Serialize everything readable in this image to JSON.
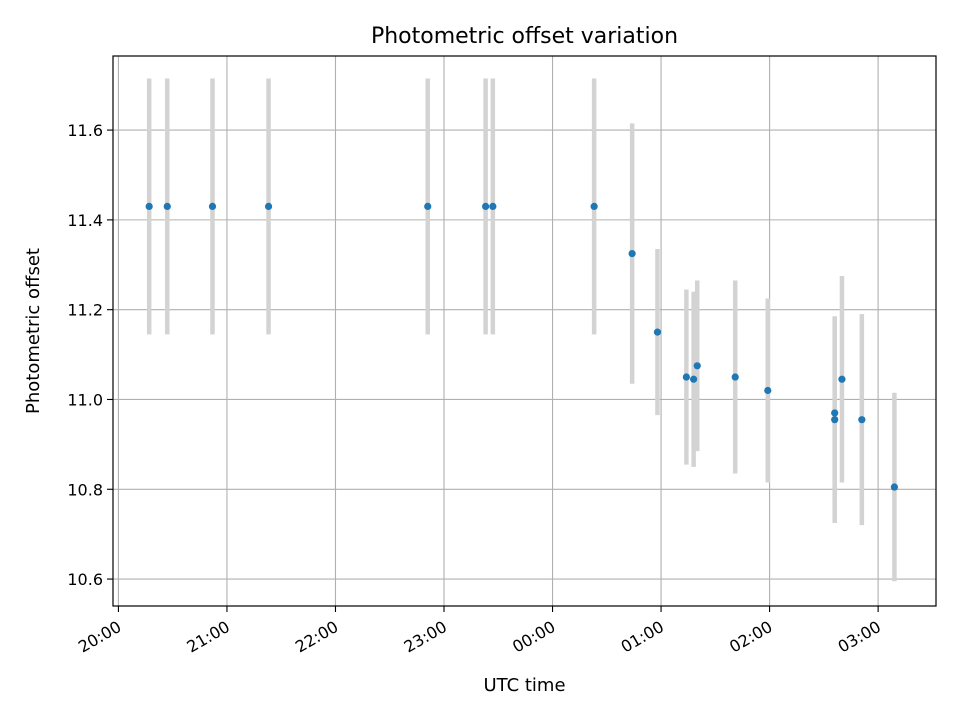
{
  "chart_data": {
    "type": "scatter",
    "title": "Photometric offset variation",
    "xlabel": "UTC time",
    "ylabel": "Photometric offset",
    "xlim_minutes": [
      -3,
      452
    ],
    "ylim": [
      10.54,
      11.765
    ],
    "grid": true,
    "x_tick_labels": [
      "20:00",
      "21:00",
      "22:00",
      "23:00",
      "00:00",
      "01:00",
      "02:00",
      "03:00"
    ],
    "y_ticks": [
      10.6,
      10.8,
      11.0,
      11.2,
      11.4,
      11.6
    ],
    "y_tick_labels": [
      "10.6",
      "10.8",
      "11.0",
      "11.2",
      "11.4",
      "11.6"
    ],
    "colors": {
      "point": "#1f77b4",
      "errorbar": "#d3d3d3",
      "grid": "#b0b0b0"
    },
    "series": [
      {
        "points": [
          {
            "time": "20:17",
            "y": 11.43,
            "err": 0.285
          },
          {
            "time": "20:27",
            "y": 11.43,
            "err": 0.285
          },
          {
            "time": "20:52",
            "y": 11.43,
            "err": 0.285
          },
          {
            "time": "21:23",
            "y": 11.43,
            "err": 0.285
          },
          {
            "time": "22:51",
            "y": 11.43,
            "err": 0.285
          },
          {
            "time": "23:23",
            "y": 11.43,
            "err": 0.285
          },
          {
            "time": "23:27",
            "y": 11.43,
            "err": 0.285
          },
          {
            "time": "00:23",
            "y": 11.43,
            "err": 0.285
          },
          {
            "time": "00:44",
            "y": 11.325,
            "err": 0.29
          },
          {
            "time": "00:58",
            "y": 11.15,
            "err": 0.185
          },
          {
            "time": "01:14",
            "y": 11.05,
            "err": 0.195
          },
          {
            "time": "01:18",
            "y": 11.045,
            "err": 0.195
          },
          {
            "time": "01:20",
            "y": 11.075,
            "err": 0.19
          },
          {
            "time": "01:41",
            "y": 11.05,
            "err": 0.215
          },
          {
            "time": "01:59",
            "y": 11.02,
            "err": 0.205
          },
          {
            "time": "02:36",
            "y": 10.97,
            "err": 0.215
          },
          {
            "time": "02:36",
            "y": 10.955,
            "err": 0.23
          },
          {
            "time": "02:40",
            "y": 11.045,
            "err": 0.23
          },
          {
            "time": "02:51",
            "y": 10.955,
            "err": 0.235
          },
          {
            "time": "03:09",
            "y": 10.805,
            "err": 0.21
          }
        ]
      }
    ]
  }
}
